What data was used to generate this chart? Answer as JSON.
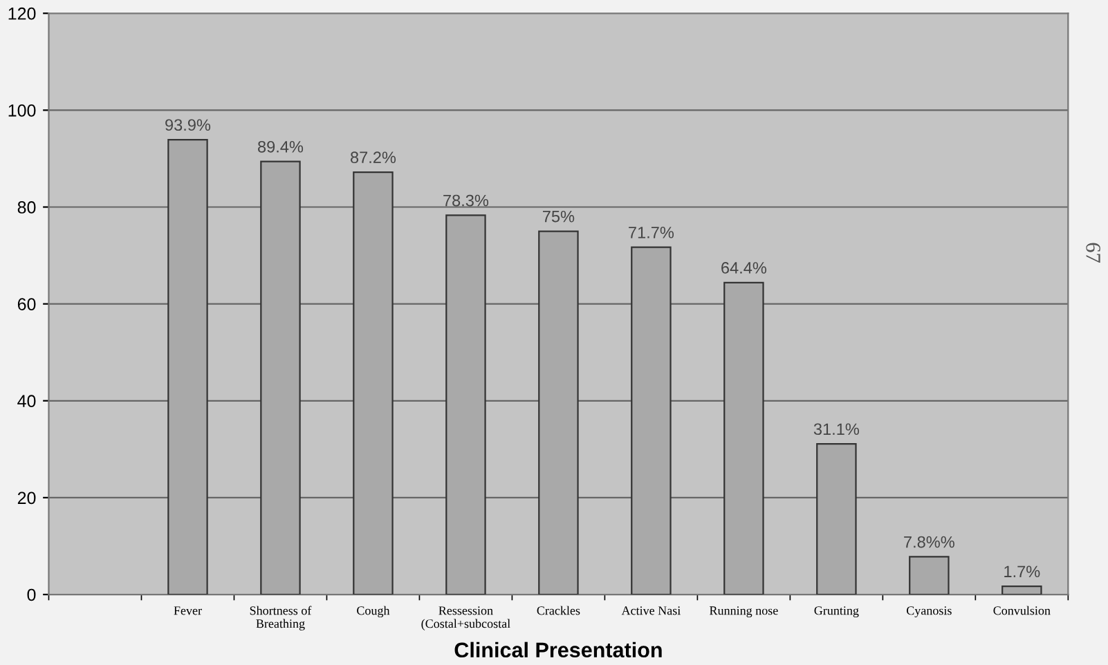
{
  "chart_data": {
    "type": "bar",
    "xlabel": "Clinical Presentation",
    "categories": [
      null,
      "Fever",
      "Shortness of\nBreathing",
      "Cough",
      "Ressession\n(Costal+subcostal",
      "Crackles",
      "Active Nasi",
      "Running nose",
      "Grunting",
      "Cyanosis",
      "Convulsion"
    ],
    "values": [
      null,
      93.9,
      89.4,
      87.2,
      78.3,
      75,
      71.7,
      64.4,
      31.1,
      7.8,
      1.7
    ],
    "value_labels": [
      null,
      "93.9%",
      "89.4%",
      "87.2%",
      "78.3%",
      "75%",
      "71.7%",
      "64.4%",
      "31.1%",
      "7.8%%",
      "1.7%"
    ],
    "color": "#a9a9a9",
    "ylim": [
      0,
      120
    ],
    "yticks": [
      0,
      20,
      40,
      60,
      80,
      100,
      120
    ],
    "grid": "y",
    "legend": false,
    "annotations": [
      "67"
    ]
  }
}
